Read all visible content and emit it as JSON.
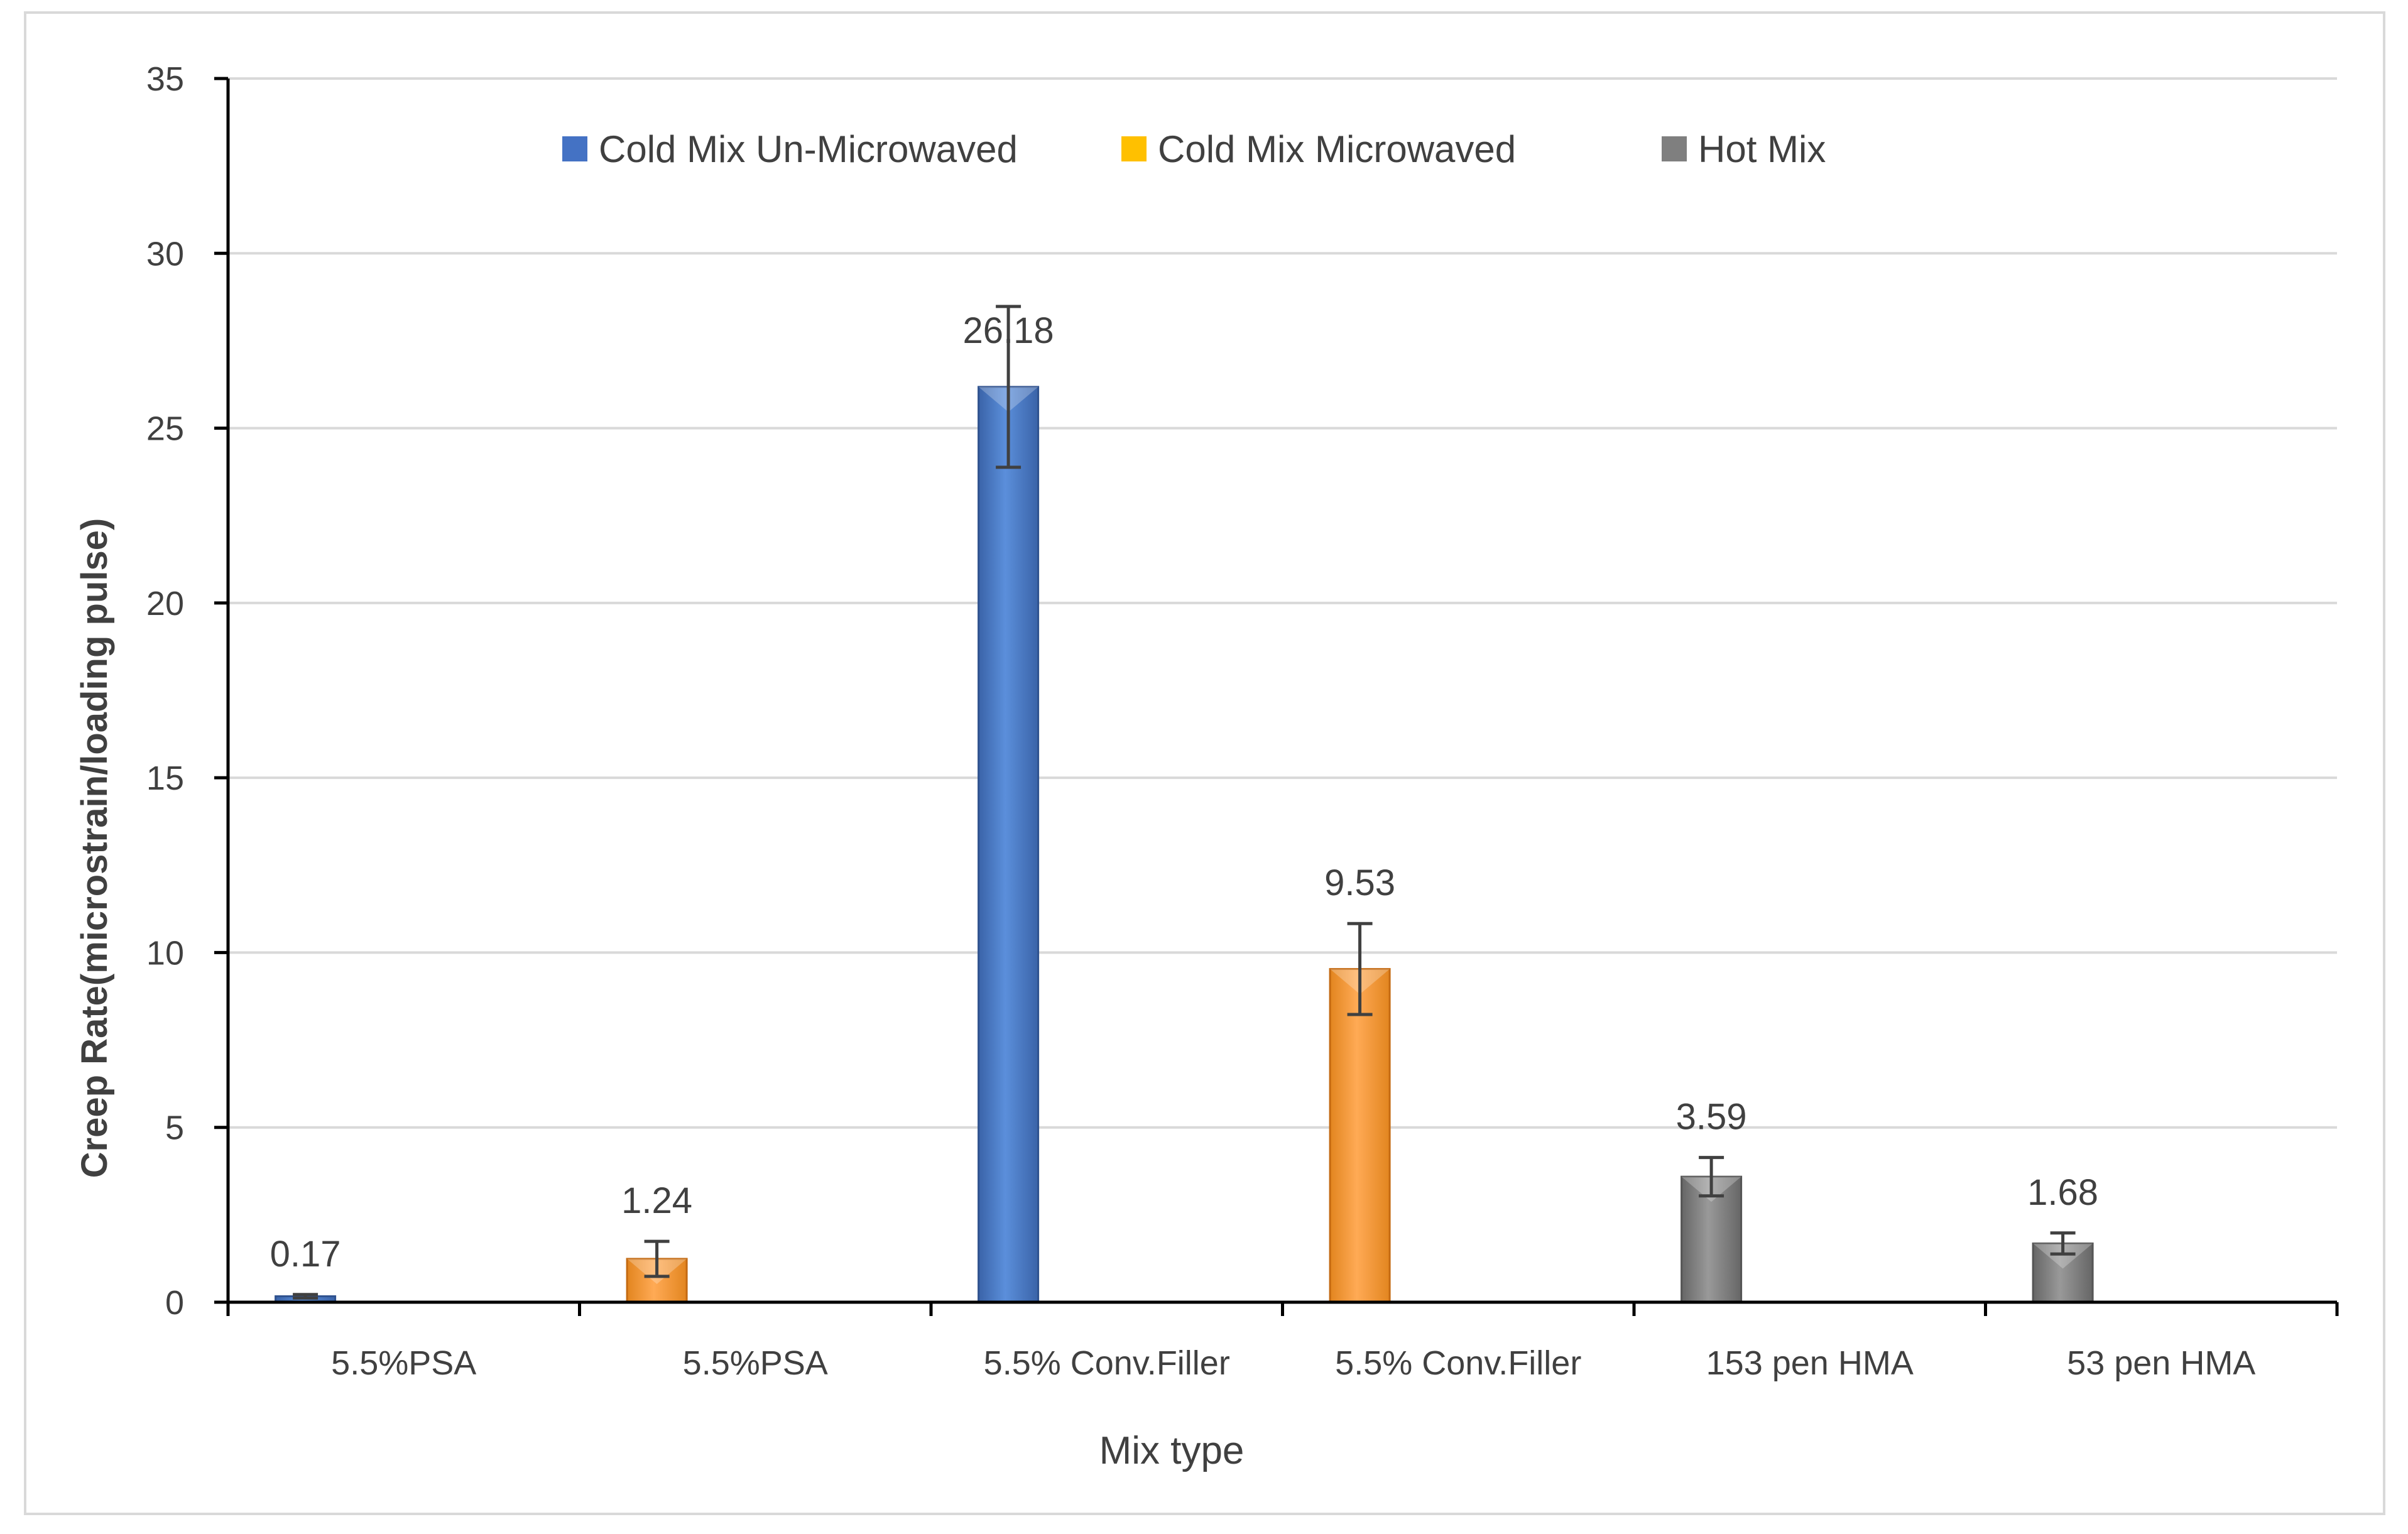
{
  "chart_data": {
    "type": "bar",
    "title": "",
    "xlabel": "Mix type",
    "ylabel": "Creep Rate(microstrain/loading pulse)",
    "ylim": [
      0,
      35
    ],
    "yticks": [
      0,
      5,
      10,
      15,
      20,
      25,
      30,
      35
    ],
    "grid": true,
    "legend_position": "top-center",
    "categories": [
      "5.5%PSA",
      "5.5%PSA",
      "5.5% Conv.Filler",
      "5.5% Conv.Filler",
      "153 pen HMA",
      "53 pen HMA"
    ],
    "bars": [
      {
        "category": "5.5%PSA",
        "series": "Cold Mix Un-Microwaved",
        "value": 0.17,
        "label": "0.17",
        "err": 0.05,
        "color": "#4472C4"
      },
      {
        "category": "5.5%PSA",
        "series": "Cold Mix Microwaved",
        "value": 1.24,
        "label": "1.24",
        "err": 0.5,
        "color": "#F4A040"
      },
      {
        "category": "5.5% Conv.Filler",
        "series": "Cold Mix Un-Microwaved",
        "value": 26.18,
        "label": "26.18",
        "err": 2.3,
        "color": "#4472C4"
      },
      {
        "category": "5.5% Conv.Filler",
        "series": "Cold Mix Microwaved",
        "value": 9.53,
        "label": "9.53",
        "err": 1.3,
        "color": "#F4A040"
      },
      {
        "category": "153 pen HMA",
        "series": "Hot Mix",
        "value": 3.59,
        "label": "3.59",
        "err": 0.55,
        "color": "#808080"
      },
      {
        "category": "53 pen HMA",
        "series": "Hot Mix",
        "value": 1.68,
        "label": "1.68",
        "err": 0.3,
        "color": "#808080"
      }
    ],
    "legend": [
      {
        "name": "Cold Mix Un-Microwaved",
        "color": "#4472C4"
      },
      {
        "name": "Cold Mix Microwaved",
        "color": "#FFC000"
      },
      {
        "name": "Hot Mix",
        "color": "#7F7F7F"
      }
    ]
  }
}
